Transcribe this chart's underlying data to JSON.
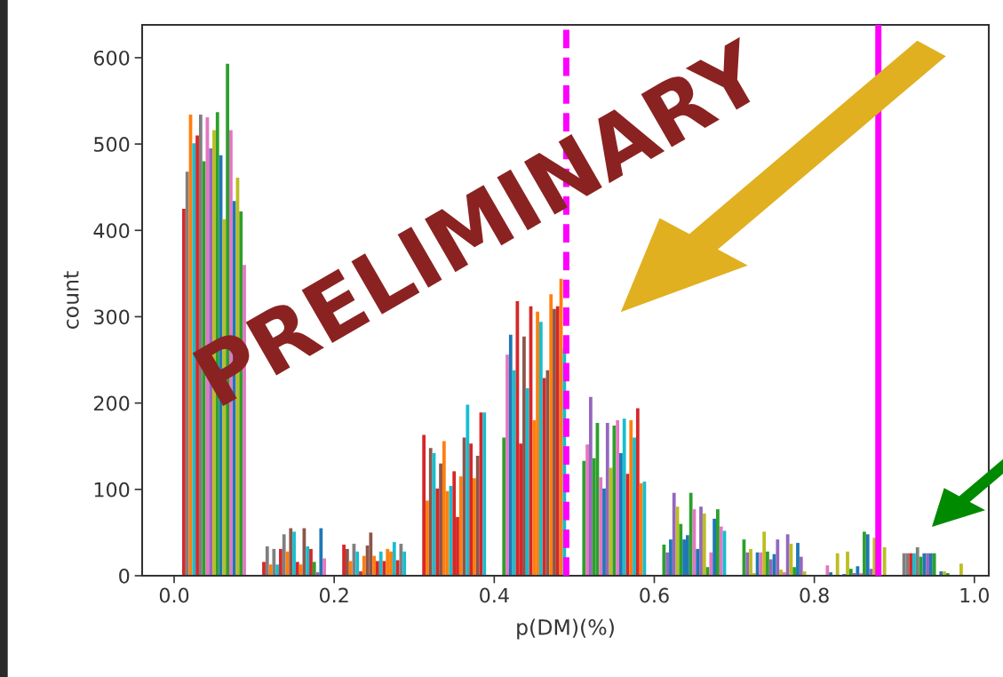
{
  "chart_data": {
    "type": "bar",
    "xlabel": "p(DM)(%)",
    "ylabel": "count",
    "xlim": [
      -0.04,
      1.018
    ],
    "ylim": [
      0,
      638
    ],
    "xticks": [
      {
        "value": 0,
        "label": "0.0"
      },
      0.2,
      0.4,
      0.6,
      0.8,
      {
        "value": 1,
        "label": "1.0"
      }
    ],
    "yticks": [
      0,
      100,
      200,
      300,
      400,
      500,
      600
    ],
    "series": [
      {
        "x": [
          0.0121,
          0.0163,
          0.0205,
          0.0247,
          0.0289,
          0.0331,
          0.0373,
          0.0415,
          0.0457,
          0.0499,
          0.0541,
          0.0583,
          0.0625,
          0.0667,
          0.0709,
          0.0751,
          0.0793,
          0.0835,
          0.0877
        ],
        "values": [
          425,
          468,
          534,
          501,
          510,
          534,
          480,
          531,
          495,
          516,
          537,
          487,
          413,
          593,
          516,
          434,
          461,
          422,
          360
        ],
        "colors": [
          "#d62728",
          "#7f7f7f",
          "#ff7f0e",
          "#17becf",
          "#d62728",
          "#7f7f7f",
          "#2ca02c",
          "#e377c2",
          "#9467bd",
          "#bcbd22",
          "#2ca02c",
          "#1f77b4",
          "#bcbd22",
          "#2ca02c",
          "#e377c2",
          "#1f77b4",
          "#bcbd22",
          "#2ca02c",
          "#e377c2"
        ]
      },
      {
        "x": [
          0.1121,
          0.1163,
          0.1205,
          0.1247,
          0.1289,
          0.1331,
          0.1373,
          0.1415,
          0.1457,
          0.1499,
          0.1541,
          0.1583,
          0.1625,
          0.1667,
          0.1709,
          0.1751,
          0.1793,
          0.1835,
          0.1877
        ],
        "values": [
          16,
          34,
          13,
          31,
          13,
          31,
          48,
          28,
          55,
          51,
          16,
          13,
          55,
          34,
          31,
          16,
          4,
          55,
          20
        ],
        "colors": [
          "#d62728",
          "#7f7f7f",
          "#ff7f0e",
          "#7f7f7f",
          "#17becf",
          "#d62728",
          "#7f7f7f",
          "#ff7f0e",
          "#8c564b",
          "#17becf",
          "#d62728",
          "#ff7f0e",
          "#8c564b",
          "#17becf",
          "#d62728",
          "#2ca02c",
          "#9467bd",
          "#1f77b4",
          "#e377c2"
        ]
      },
      {
        "x": [
          0.2121,
          0.2163,
          0.2205,
          0.2247,
          0.2289,
          0.2331,
          0.2373,
          0.2415,
          0.2457,
          0.2499,
          0.2541,
          0.2583,
          0.2625,
          0.2667,
          0.2709,
          0.2751,
          0.2793,
          0.2835,
          0.2877
        ],
        "values": [
          36,
          31,
          17,
          37,
          28,
          5,
          23,
          35,
          50,
          23,
          17,
          28,
          17,
          31,
          28,
          39,
          18,
          37,
          28
        ],
        "colors": [
          "#d62728",
          "#8c564b",
          "#ff7f0e",
          "#7f7f7f",
          "#17becf",
          "#d62728",
          "#ff7f0e",
          "#8c564b",
          "#8c564b",
          "#ff7f0e",
          "#d62728",
          "#17becf",
          "#d62728",
          "#ff7f0e",
          "#ff7f0e",
          "#17becf",
          "#d62728",
          "#7f7f7f",
          "#17becf"
        ]
      },
      {
        "x": [
          0.3121,
          0.3163,
          0.3205,
          0.3247,
          0.3289,
          0.3331,
          0.3373,
          0.3415,
          0.3457,
          0.3499,
          0.3541,
          0.3583,
          0.3625,
          0.3667,
          0.3709,
          0.3751,
          0.3793,
          0.3835,
          0.3877
        ],
        "values": [
          163,
          87,
          148,
          142,
          101,
          130,
          156,
          98,
          104,
          121,
          68,
          115,
          160,
          198,
          153,
          113,
          139,
          189,
          189
        ],
        "colors": [
          "#d62728",
          "#ff7f0e",
          "#8c564b",
          "#17becf",
          "#d62728",
          "#8c564b",
          "#ff7f0e",
          "#ff7f0e",
          "#17becf",
          "#d62728",
          "#d62728",
          "#ff7f0e",
          "#8c564b",
          "#17becf",
          "#d62728",
          "#ff7f0e",
          "#8c564b",
          "#d62728",
          "#17becf"
        ]
      },
      {
        "x": [
          0.4121,
          0.4163,
          0.4205,
          0.4247,
          0.4289,
          0.4331,
          0.4373,
          0.4415,
          0.4457,
          0.4499,
          0.4541,
          0.4583,
          0.4625,
          0.4667,
          0.4709,
          0.4751,
          0.4793,
          0.4835,
          0.4877
        ],
        "values": [
          160,
          256,
          279,
          238,
          318,
          153,
          277,
          217,
          312,
          180,
          306,
          294,
          229,
          238,
          326,
          309,
          312,
          344,
          264
        ],
        "colors": [
          "#2ca02c",
          "#e377c2",
          "#1f77b4",
          "#17becf",
          "#d62728",
          "#d62728",
          "#8c564b",
          "#17becf",
          "#d62728",
          "#ff7f0e",
          "#ff7f0e",
          "#17becf",
          "#d62728",
          "#8c564b",
          "#ff7f0e",
          "#8c564b",
          "#d62728",
          "#ff7f0e",
          "#17becf"
        ]
      },
      {
        "x": [
          0.5121,
          0.5163,
          0.5205,
          0.5247,
          0.5289,
          0.5331,
          0.5373,
          0.5415,
          0.5457,
          0.5499,
          0.5541,
          0.5583,
          0.5625,
          0.5667,
          0.5709,
          0.5751,
          0.5793,
          0.5835,
          0.5877
        ],
        "values": [
          133,
          152,
          207,
          136,
          177,
          114,
          101,
          177,
          125,
          174,
          180,
          142,
          182,
          118,
          180,
          160,
          194,
          107,
          109
        ],
        "colors": [
          "#2ca02c",
          "#e377c2",
          "#9467bd",
          "#2ca02c",
          "#2ca02c",
          "#e377c2",
          "#1f77b4",
          "#9467bd",
          "#bcbd22",
          "#2ca02c",
          "#e377c2",
          "#1f77b4",
          "#17becf",
          "#d62728",
          "#ff7f0e",
          "#17becf",
          "#d62728",
          "#ff7f0e",
          "#17becf"
        ]
      },
      {
        "x": [
          0.6121,
          0.6163,
          0.6205,
          0.6247,
          0.6289,
          0.6331,
          0.6373,
          0.6415,
          0.6457,
          0.6499,
          0.6541,
          0.6583,
          0.6625,
          0.6667,
          0.6709,
          0.6751,
          0.6793,
          0.6835,
          0.6877
        ],
        "values": [
          36,
          27,
          42,
          96,
          80,
          60,
          42,
          47,
          96,
          77,
          31,
          80,
          72,
          10,
          27,
          66,
          77,
          57,
          52
        ],
        "colors": [
          "#2ca02c",
          "#9467bd",
          "#1f77b4",
          "#9467bd",
          "#bcbd22",
          "#2ca02c",
          "#1f77b4",
          "#1f77b4",
          "#2ca02c",
          "#e377c2",
          "#1f77b4",
          "#9467bd",
          "#bcbd22",
          "#2ca02c",
          "#e377c2",
          "#1f77b4",
          "#2ca02c",
          "#e377c2",
          "#17becf"
        ]
      },
      {
        "x": [
          0.7121,
          0.7163,
          0.7205,
          0.7247,
          0.7289,
          0.7331,
          0.7373,
          0.7415,
          0.7457,
          0.7499,
          0.7541,
          0.7583,
          0.7625,
          0.7667,
          0.7709,
          0.7751,
          0.7793,
          0.7835,
          0.7877
        ],
        "values": [
          42,
          27,
          31,
          3,
          27,
          27,
          51,
          28,
          19,
          25,
          42,
          7,
          4,
          48,
          37,
          10,
          38,
          22,
          5
        ],
        "colors": [
          "#2ca02c",
          "#9467bd",
          "#bcbd22",
          "#bcbd22",
          "#1f77b4",
          "#e377c2",
          "#bcbd22",
          "#2ca02c",
          "#9467bd",
          "#1f77b4",
          "#9467bd",
          "#bcbd22",
          "#e377c2",
          "#9467bd",
          "#bcbd22",
          "#2ca02c",
          "#1f77b4",
          "#9467bd",
          "#bcbd22"
        ]
      },
      {
        "x": [
          0.8163,
          0.8205,
          0.8247,
          0.8289,
          0.8331,
          0.8373,
          0.8415,
          0.8457,
          0.8499,
          0.8541,
          0.8583,
          0.8625,
          0.8667,
          0.8709,
          0.8751,
          0.8877
        ],
        "values": [
          12,
          4,
          0,
          26,
          0,
          2,
          28,
          8,
          3,
          11,
          3,
          51,
          48,
          8,
          44,
          33
        ],
        "colors": [
          "#e377c2",
          "#1f77b4",
          "#1f77b4",
          "#bcbd22",
          "#1f77b4",
          "#1f77b4",
          "#bcbd22",
          "#2ca02c",
          "#9467bd",
          "#1f77b4",
          "#e377c2",
          "#2ca02c",
          "#1f77b4",
          "#9467bd",
          "#bcbd22",
          "#bcbd22"
        ]
      },
      {
        "x": [
          0.9121,
          0.9163,
          0.9205,
          0.9247,
          0.9289,
          0.9331,
          0.9373,
          0.9415,
          0.9457,
          0.9499,
          0.9541,
          0.9583,
          0.9625,
          0.9667,
          0.9709,
          0.9751,
          0.9793,
          0.9835,
          0.9877
        ],
        "values": [
          26,
          26,
          26,
          26,
          33,
          22,
          26,
          26,
          26,
          26,
          0,
          5,
          5,
          3,
          0,
          0,
          0,
          14,
          0
        ],
        "colors": [
          "#7f7f7f",
          "#7f7f7f",
          "#d62728",
          "#17becf",
          "#7f7f7f",
          "#2ca02c",
          "#1f77b4",
          "#9467bd",
          "#1f77b4",
          "#2ca02c",
          "#1f77b4",
          "#1f77b4",
          "#bcbd22",
          "#2ca02c",
          "#bcbd22",
          "#bcbd22",
          "#bcbd22",
          "#bcbd22",
          "#bcbd22"
        ]
      }
    ],
    "ref_lines": [
      {
        "axis": "x",
        "value": 0.49,
        "color": "#ff00ff",
        "line_style": "dashed"
      },
      {
        "axis": "x",
        "value": 0.88,
        "color": "#ff00ff",
        "line_style": "solid"
      }
    ],
    "annotations": [
      "PRELIMINARY"
    ]
  }
}
